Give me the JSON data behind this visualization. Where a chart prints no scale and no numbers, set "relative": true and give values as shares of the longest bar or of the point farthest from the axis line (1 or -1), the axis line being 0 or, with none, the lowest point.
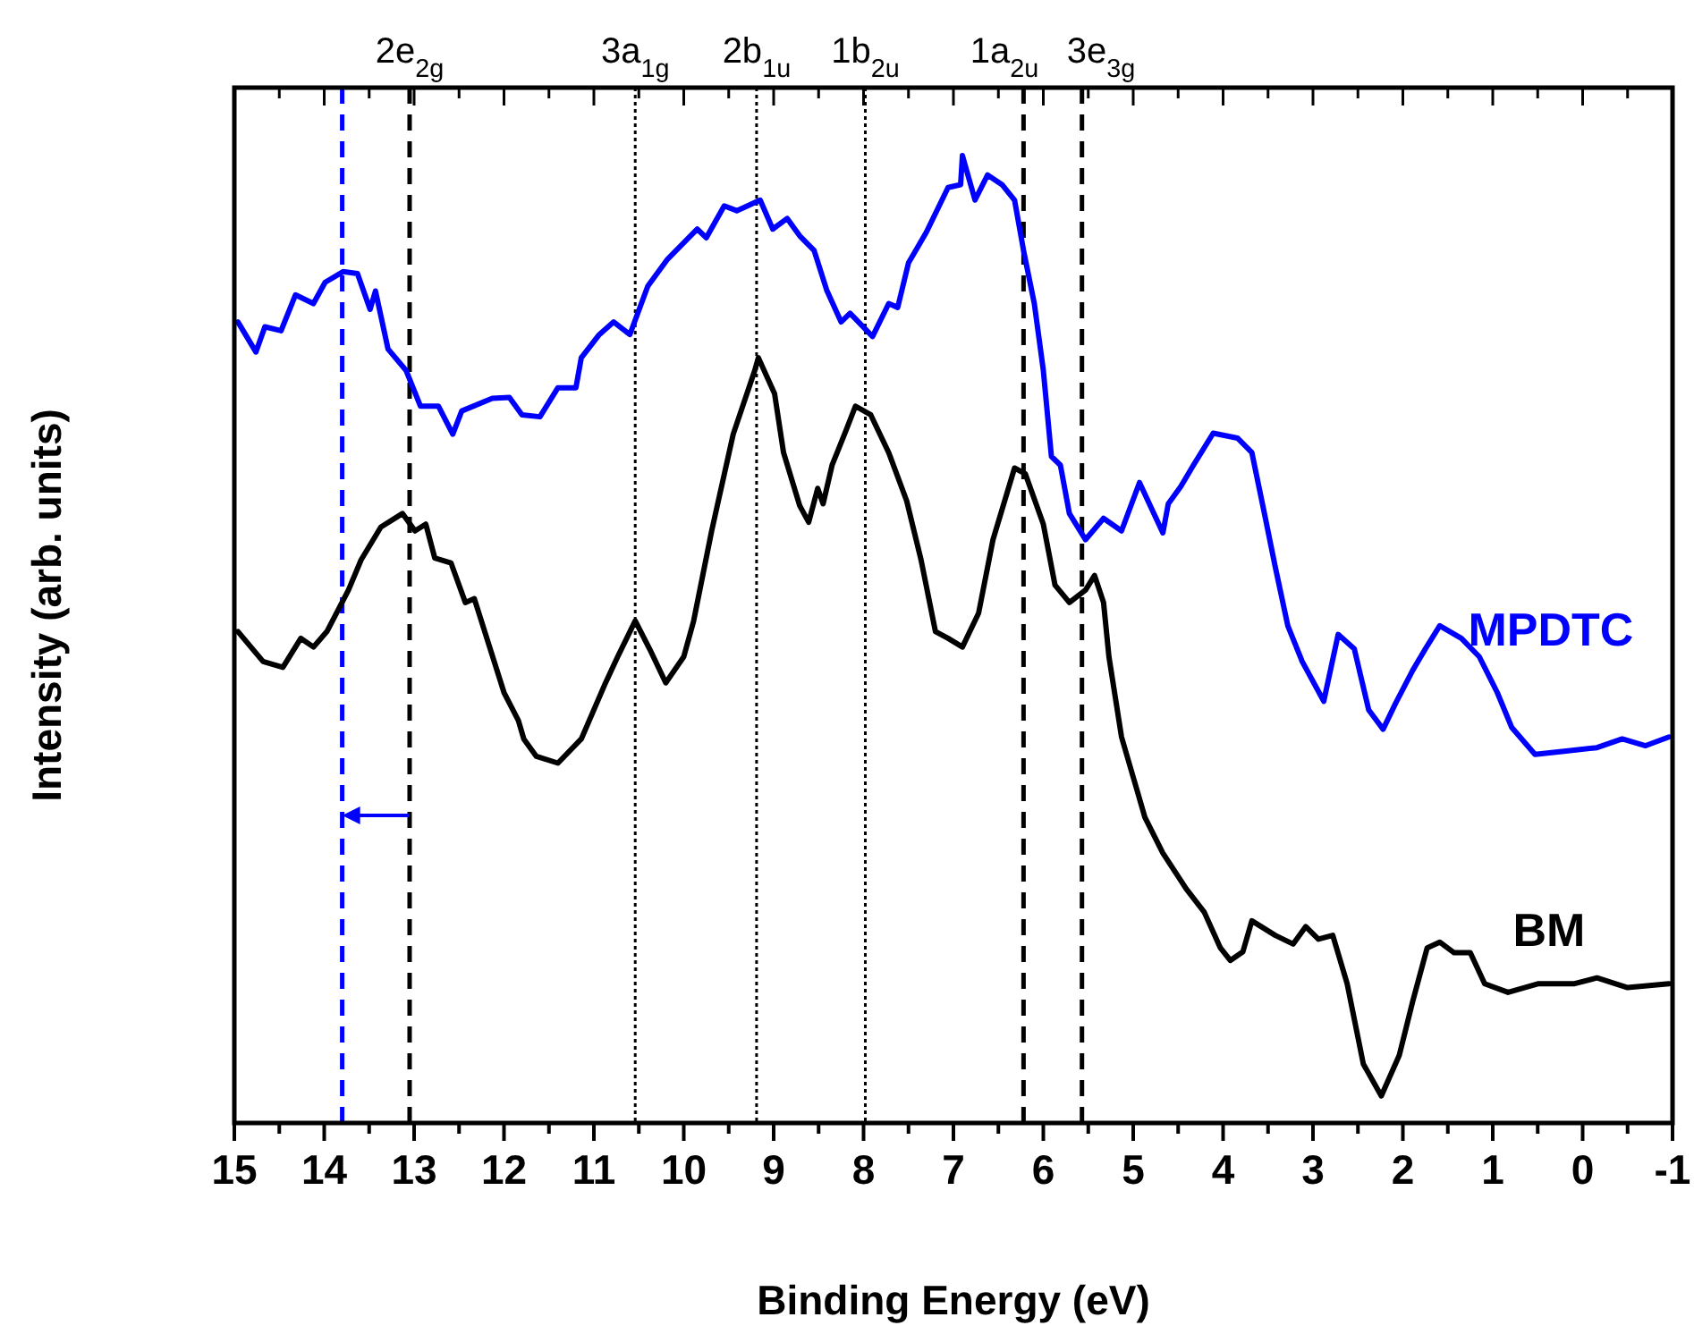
{
  "chart_data": {
    "type": "line",
    "relative": true,
    "xlabel": "Binding Energy (eV)",
    "ylabel": "Intensity (arb. units)",
    "legend": false,
    "line_style": "solid",
    "xlim": [
      15,
      -1
    ],
    "xticks": [
      15,
      {
        "value": 14.5,
        "label": null
      },
      14,
      {
        "value": 13.5,
        "label": null
      },
      13,
      {
        "value": 12.5,
        "label": null
      },
      12,
      {
        "value": 11.5,
        "label": null
      },
      11,
      {
        "value": 10.5,
        "label": null
      },
      10,
      {
        "value": 9.5,
        "label": null
      },
      9,
      {
        "value": 8.5,
        "label": null
      },
      8,
      {
        "value": 7.5,
        "label": null
      },
      7,
      {
        "value": 6.5,
        "label": null
      },
      6,
      {
        "value": 5.5,
        "label": null
      },
      5,
      {
        "value": 4.5,
        "label": null
      },
      4,
      {
        "value": 3.5,
        "label": null
      },
      3,
      {
        "value": 2.5,
        "label": null
      },
      2,
      {
        "value": 1.5,
        "label": null
      },
      1,
      {
        "value": 0.5,
        "label": null
      },
      0,
      {
        "value": -0.5,
        "label": null
      },
      -1
    ],
    "ref_lines": [
      {
        "axis": "x",
        "value": 13.8,
        "color": "#0000ff",
        "line_style": "dashed"
      },
      {
        "axis": "x",
        "value": 13.05,
        "label": "2e$_{2g}$",
        "color": "#000000",
        "line_style": "dashed"
      },
      {
        "axis": "x",
        "value": 10.54,
        "label": "3a$_{1g}$",
        "color": "#000000",
        "line_style": "dotted"
      },
      {
        "axis": "x",
        "value": 9.19,
        "label": "2b$_{1u}$",
        "color": "#000000",
        "line_style": "dotted"
      },
      {
        "axis": "x",
        "value": 7.98,
        "label": "1b$_{2u}$",
        "color": "#000000",
        "line_style": "dotted"
      },
      {
        "axis": "x",
        "value": 6.22,
        "label": "1a$_{2u}$",
        "color": "#000000",
        "line_style": "dashed"
      },
      {
        "axis": "x",
        "value": 5.57,
        "label": "3e$_{3g}$",
        "color": "#000000",
        "line_style": "dashed"
      }
    ],
    "series": [
      {
        "name": "MPDTC",
        "color": "#0000ff",
        "x": [
          14.96,
          14.76,
          14.66,
          14.48,
          14.32,
          14.12,
          13.99,
          13.79,
          13.63,
          13.49,
          13.43,
          13.29,
          13.09,
          12.93,
          12.73,
          12.57,
          12.47,
          12.13,
          11.94,
          11.8,
          11.6,
          11.4,
          11.2,
          11.14,
          10.94,
          10.78,
          10.6,
          10.4,
          10.18,
          9.85,
          9.75,
          9.55,
          9.41,
          9.15,
          9.01,
          8.85,
          8.71,
          8.55,
          8.41,
          8.25,
          8.15,
          7.9,
          7.72,
          7.62,
          7.5,
          7.3,
          7.06,
          6.92,
          6.9,
          6.76,
          6.62,
          6.46,
          6.32,
          6.22,
          6.1,
          6.0,
          5.91,
          5.81,
          5.71,
          5.53,
          5.33,
          5.13,
          4.93,
          4.67,
          4.61,
          4.47,
          4.33,
          4.11,
          3.84,
          3.68,
          3.54,
          3.42,
          3.28,
          3.12,
          2.88,
          2.72,
          2.54,
          2.38,
          2.22,
          2.08,
          1.89,
          1.75,
          1.59,
          1.35,
          1.15,
          0.95,
          0.79,
          0.53,
          0.23,
          -0.16,
          -0.44,
          -0.7,
          -0.96
        ],
        "values": [
          0.828,
          0.797,
          0.823,
          0.819,
          0.856,
          0.847,
          0.869,
          0.88,
          0.878,
          0.841,
          0.86,
          0.8,
          0.778,
          0.741,
          0.741,
          0.712,
          0.736,
          0.749,
          0.75,
          0.732,
          0.73,
          0.76,
          0.76,
          0.791,
          0.815,
          0.828,
          0.815,
          0.865,
          0.893,
          0.924,
          0.915,
          0.948,
          0.943,
          0.954,
          0.924,
          0.935,
          0.917,
          0.902,
          0.861,
          0.828,
          0.837,
          0.813,
          0.847,
          0.843,
          0.889,
          0.921,
          0.967,
          0.97,
          1.0,
          0.954,
          0.98,
          0.97,
          0.954,
          0.902,
          0.847,
          0.778,
          0.689,
          0.68,
          0.63,
          0.603,
          0.625,
          0.612,
          0.662,
          0.61,
          0.64,
          0.658,
          0.68,
          0.713,
          0.708,
          0.693,
          0.63,
          0.575,
          0.514,
          0.477,
          0.436,
          0.505,
          0.49,
          0.427,
          0.407,
          0.434,
          0.468,
          0.49,
          0.514,
          0.501,
          0.482,
          0.445,
          0.409,
          0.381,
          0.384,
          0.388,
          0.397,
          0.39,
          0.399
        ]
      },
      {
        "name": "BM",
        "color": "#000000",
        "x": [
          14.96,
          14.68,
          14.46,
          14.26,
          14.12,
          13.97,
          13.73,
          13.59,
          13.37,
          13.13,
          12.99,
          12.87,
          12.77,
          12.59,
          12.43,
          12.33,
          12.0,
          11.84,
          11.78,
          11.64,
          11.4,
          11.14,
          10.88,
          10.74,
          10.54,
          10.38,
          10.2,
          10.0,
          9.89,
          9.69,
          9.45,
          9.21,
          9.17,
          8.99,
          8.89,
          8.71,
          8.61,
          8.51,
          8.45,
          8.35,
          8.19,
          8.09,
          7.92,
          7.72,
          7.52,
          7.36,
          7.2,
          7.06,
          6.9,
          6.72,
          6.56,
          6.32,
          6.2,
          6.0,
          5.87,
          5.71,
          5.53,
          5.43,
          5.33,
          5.27,
          5.13,
          4.87,
          4.67,
          4.41,
          4.21,
          4.03,
          3.92,
          3.78,
          3.68,
          3.42,
          3.22,
          3.08,
          2.94,
          2.78,
          2.62,
          2.44,
          2.24,
          2.04,
          1.89,
          1.73,
          1.59,
          1.43,
          1.25,
          1.09,
          0.83,
          0.49,
          0.09,
          -0.16,
          -0.5,
          -0.96
        ],
        "values": [
          0.508,
          0.477,
          0.471,
          0.501,
          0.492,
          0.508,
          0.551,
          0.582,
          0.616,
          0.63,
          0.612,
          0.619,
          0.584,
          0.579,
          0.538,
          0.542,
          0.445,
          0.416,
          0.397,
          0.379,
          0.372,
          0.397,
          0.453,
          0.481,
          0.519,
          0.49,
          0.455,
          0.482,
          0.519,
          0.612,
          0.712,
          0.778,
          0.791,
          0.754,
          0.693,
          0.638,
          0.621,
          0.656,
          0.64,
          0.68,
          0.717,
          0.741,
          0.732,
          0.693,
          0.643,
          0.582,
          0.508,
          0.501,
          0.492,
          0.527,
          0.603,
          0.677,
          0.671,
          0.619,
          0.556,
          0.538,
          0.551,
          0.566,
          0.538,
          0.482,
          0.399,
          0.316,
          0.279,
          0.242,
          0.218,
          0.181,
          0.168,
          0.177,
          0.209,
          0.194,
          0.185,
          0.203,
          0.19,
          0.194,
          0.144,
          0.061,
          0.028,
          0.07,
          0.126,
          0.181,
          0.187,
          0.176,
          0.176,
          0.144,
          0.135,
          0.144,
          0.144,
          0.15,
          0.14,
          0.144
        ]
      }
    ]
  }
}
